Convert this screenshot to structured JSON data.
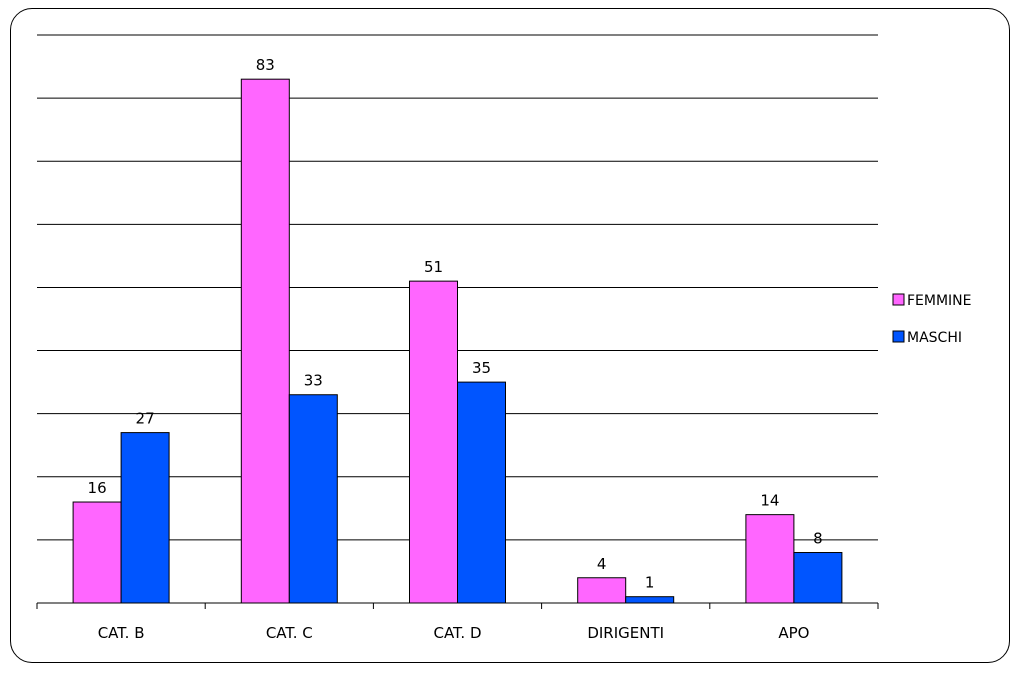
{
  "chart_data": {
    "type": "bar",
    "categories": [
      "CAT. B",
      "CAT. C",
      "CAT. D",
      "DIRIGENTI",
      "APO"
    ],
    "series": [
      {
        "name": "FEMMINE",
        "values": [
          16,
          83,
          51,
          4,
          14
        ],
        "color": "#ff66ff"
      },
      {
        "name": "MASCHI",
        "values": [
          27,
          33,
          35,
          1,
          8
        ],
        "color": "#0055ff"
      }
    ],
    "ylim": [
      0,
      90
    ],
    "y_gridline_step": 10,
    "grid": true,
    "y_tick_labels": false,
    "data_labels": true,
    "legend": "right",
    "title": "",
    "xlabel": "",
    "ylabel": ""
  }
}
